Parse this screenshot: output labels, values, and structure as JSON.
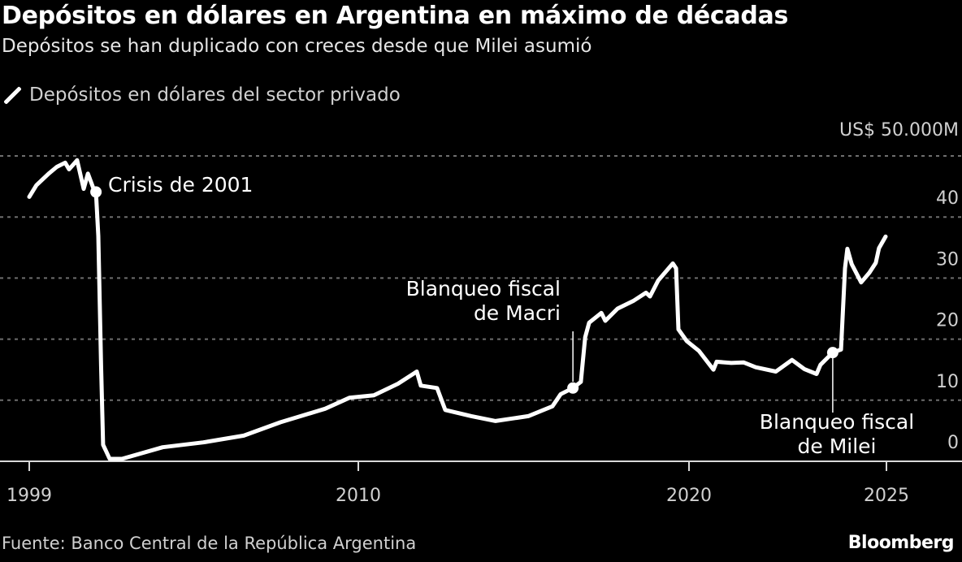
{
  "header": {
    "title": "Depósitos en dólares en Argentina en máximo de décadas",
    "subtitle": "Depósitos se han duplicado con creces desde que Milei asumió"
  },
  "footer": {
    "source": "Fuente: Banco Central de la República Argentina",
    "logo": "Bloomberg"
  },
  "chart_data": {
    "type": "line",
    "title": "Depósitos en dólares en Argentina en máximo de décadas",
    "subtitle": "Depósitos se han duplicado con creces desde que Milei asumió",
    "unit_label": "US$ 50.000M",
    "legend_placement": "top-left",
    "grid": true,
    "colors": {
      "background": "#000000",
      "line": "#ffffff",
      "grid": "#6e6e6e",
      "text": "#d0d0d0"
    },
    "ylim": [
      0,
      50
    ],
    "y_ticks": [
      {
        "value": 0,
        "label": "0"
      },
      {
        "value": 10,
        "label": "10"
      },
      {
        "value": 20,
        "label": "20"
      },
      {
        "value": 30,
        "label": "30"
      },
      {
        "value": 40,
        "label": "40"
      },
      {
        "value": 50,
        "label": "US$ 50.000M"
      }
    ],
    "x_ticks": [
      {
        "value": 1999,
        "label": "1999"
      },
      {
        "value": 2010,
        "label": "2010"
      },
      {
        "value": 2020,
        "label": "2020"
      },
      {
        "value": 2025,
        "label": "2025"
      }
    ],
    "series": [
      {
        "name": "Depósitos en dólares del sector privado",
        "x": [
          1999.0,
          1999.24,
          1999.65,
          1999.92,
          2000.2,
          2000.33,
          2000.6,
          2000.82,
          2000.96,
          2001.15,
          2001.23,
          2001.31,
          2001.4,
          2001.47,
          2001.69,
          2002.1,
          2003.46,
          2004.82,
          2006.17,
          2007.4,
          2008.89,
          2009.7,
          2010.47,
          2011.2,
          2011.77,
          2011.89,
          2012.38,
          2012.63,
          2013.42,
          2014.15,
          2015.14,
          2015.87,
          2016.12,
          2016.49,
          2016.73,
          2016.86,
          2016.98,
          2017.35,
          2017.47,
          2017.84,
          2018.33,
          2018.7,
          2018.82,
          2019.07,
          2019.51,
          2019.61,
          2019.68,
          2019.93,
          2020.25,
          2020.62,
          2020.7,
          2021.07,
          2021.38,
          2021.69,
          2022.2,
          2022.61,
          2022.92,
          2023.23,
          2023.33,
          2023.64,
          2023.85,
          2023.95,
          2024.01,
          2024.12,
          2024.36,
          2024.57,
          2024.73,
          2024.81,
          2024.98
        ],
        "values": [
          43.3,
          45.2,
          47.1,
          48.2,
          48.9,
          47.8,
          49.3,
          44.6,
          47.1,
          44.6,
          44.1,
          36.9,
          15.7,
          2.7,
          0.4,
          0.4,
          2.3,
          3.1,
          4.2,
          6.4,
          8.6,
          10.4,
          10.8,
          12.7,
          14.7,
          12.4,
          12.0,
          8.4,
          7.4,
          6.6,
          7.4,
          9.0,
          11.0,
          12.0,
          13.0,
          20.3,
          22.7,
          24.3,
          23.0,
          25.0,
          26.3,
          27.6,
          27.0,
          29.6,
          32.4,
          31.6,
          21.6,
          19.7,
          18.1,
          15.0,
          16.3,
          16.1,
          16.2,
          15.4,
          14.7,
          16.6,
          15.1,
          14.3,
          15.8,
          17.8,
          18.3,
          31.6,
          34.8,
          32.3,
          29.3,
          30.9,
          32.5,
          34.9,
          36.8
        ]
      }
    ],
    "annotations": [
      {
        "label": "Crisis de 2001",
        "lines": [
          "Crisis de 2001"
        ],
        "x": 2001.23,
        "y": 44.1
      },
      {
        "label": "Blanqueo fiscal de Macri",
        "lines": [
          "Blanqueo fiscal",
          "de Macri"
        ],
        "x": 2016.49,
        "y": 12.0
      },
      {
        "label": "Blanqueo fiscal de Milei",
        "lines": [
          "Blanqueo fiscal",
          "de Milei"
        ],
        "x": 2023.64,
        "y": 17.8
      }
    ]
  }
}
